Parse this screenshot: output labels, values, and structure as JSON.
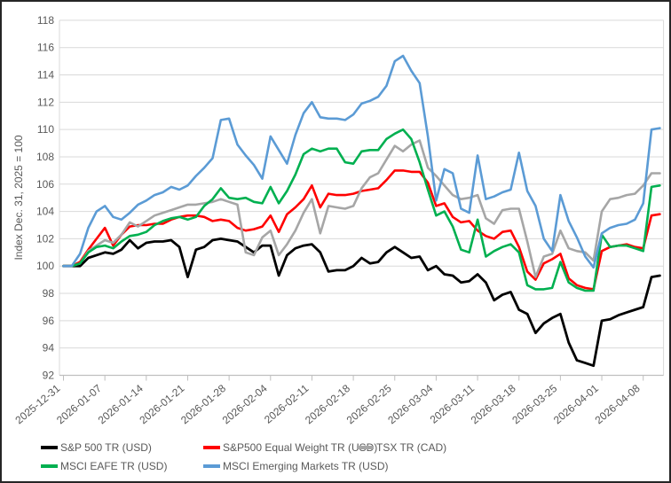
{
  "y_axis": {
    "title": "Index Dec. 31, 2025 = 100",
    "min": 92,
    "max": 118,
    "step": 2,
    "tick_labels": [
      "92",
      "94",
      "96",
      "98",
      "100",
      "102",
      "104",
      "106",
      "108",
      "110",
      "112",
      "114",
      "116",
      "118"
    ]
  },
  "x_axis": {
    "tick_labels": [
      "2025-12-31",
      "2026-01-07",
      "2026-01-14",
      "2026-01-21",
      "2026-01-28",
      "2026-02-04",
      "2026-02-11",
      "2026-02-18",
      "2026-02-25",
      "2026-03-04",
      "2026-03-11",
      "2026-03-18",
      "2026-03-25",
      "2026-04-01",
      "2026-04-08"
    ],
    "tick_every": 5
  },
  "colors": {
    "gridline": "#d9d9d9",
    "axis_line": "#bfbfbf",
    "text": "#595959",
    "figure_border": "#262626"
  },
  "chart_data": {
    "type": "line",
    "title": "",
    "xlabel": "",
    "ylabel": "Index Dec. 31, 2025 = 100",
    "ylim": [
      92,
      118
    ],
    "grid": true,
    "legend_position": "bottom",
    "x": [
      "2025-12-31",
      "2026-01-01",
      "2026-01-02",
      "2026-01-05",
      "2026-01-06",
      "2026-01-07",
      "2026-01-08",
      "2026-01-09",
      "2026-01-12",
      "2026-01-13",
      "2026-01-14",
      "2026-01-15",
      "2026-01-16",
      "2026-01-19",
      "2026-01-20",
      "2026-01-21",
      "2026-01-22",
      "2026-01-23",
      "2026-01-26",
      "2026-01-27",
      "2026-01-28",
      "2026-01-29",
      "2026-01-30",
      "2026-02-02",
      "2026-02-03",
      "2026-02-04",
      "2026-02-05",
      "2026-02-06",
      "2026-02-09",
      "2026-02-10",
      "2026-02-11",
      "2026-02-12",
      "2026-02-13",
      "2026-02-16",
      "2026-02-17",
      "2026-02-18",
      "2026-02-19",
      "2026-02-20",
      "2026-02-23",
      "2026-02-24",
      "2026-02-25",
      "2026-02-26",
      "2026-02-27",
      "2026-03-02",
      "2026-03-03",
      "2026-03-04",
      "2026-03-05",
      "2026-03-06",
      "2026-03-09",
      "2026-03-10",
      "2026-03-11",
      "2026-03-12",
      "2026-03-13",
      "2026-03-16",
      "2026-03-17",
      "2026-03-18",
      "2026-03-19",
      "2026-03-20",
      "2026-03-23",
      "2026-03-24",
      "2026-03-25",
      "2026-03-26",
      "2026-03-27",
      "2026-03-30",
      "2026-03-31",
      "2026-04-01",
      "2026-04-02",
      "2026-04-03",
      "2026-04-06",
      "2026-04-07",
      "2026-04-08",
      "2026-04-09",
      "2026-04-10"
    ],
    "series": [
      {
        "name": "S&P 500 TR (USD)",
        "color": "#000000",
        "values": [
          100,
          100,
          100.0,
          100.6,
          100.8,
          101.0,
          100.9,
          101.2,
          101.9,
          101.3,
          101.7,
          101.8,
          101.8,
          101.9,
          101.4,
          99.2,
          101.2,
          101.4,
          101.9,
          102.0,
          101.9,
          101.8,
          101.4,
          101.0,
          101.5,
          101.5,
          99.3,
          100.8,
          101.3,
          101.5,
          101.6,
          101.0,
          99.6,
          99.7,
          99.7,
          100.0,
          100.6,
          100.2,
          100.3,
          101.0,
          101.4,
          101.0,
          100.6,
          100.7,
          99.7,
          100.0,
          99.4,
          99.3,
          98.8,
          98.9,
          99.4,
          98.8,
          97.5,
          97.9,
          98.1,
          96.8,
          96.5,
          95.1,
          95.8,
          96.2,
          96.5,
          94.4,
          93.1,
          92.9,
          92.7,
          96.0,
          96.1,
          96.4,
          96.6,
          96.8,
          97.0,
          99.2,
          99.3
        ]
      },
      {
        "name": "S&P500 Equal Weight TR (USD)",
        "color": "#ff0000",
        "values": [
          100,
          100,
          100.3,
          101.2,
          102.0,
          102.8,
          101.5,
          102.3,
          102.9,
          103.0,
          103.0,
          103.1,
          103.1,
          103.4,
          103.6,
          103.7,
          103.7,
          103.6,
          103.3,
          103.4,
          103.3,
          102.8,
          102.6,
          102.7,
          102.9,
          103.7,
          102.5,
          103.8,
          104.3,
          104.9,
          105.9,
          104.3,
          105.3,
          105.2,
          105.2,
          105.3,
          105.5,
          105.6,
          105.7,
          106.3,
          107.0,
          107.0,
          106.9,
          106.9,
          106.1,
          104.4,
          104.6,
          103.6,
          103.2,
          103.3,
          102.6,
          102.2,
          102.0,
          102.5,
          102.6,
          101.4,
          99.6,
          99.0,
          100.2,
          100.5,
          100.9,
          99.1,
          98.6,
          98.4,
          98.3,
          101.1,
          101.4,
          101.5,
          101.6,
          101.4,
          101.3,
          103.7,
          103.8
        ]
      },
      {
        "name": "TSX TR (CAD)",
        "color": "#a6a6a6",
        "values": [
          100,
          100,
          100.2,
          101.1,
          101.5,
          101.9,
          101.7,
          102.3,
          103.2,
          102.9,
          103.3,
          103.7,
          103.9,
          104.1,
          104.3,
          104.5,
          104.5,
          104.6,
          104.7,
          104.9,
          104.7,
          104.5,
          101.0,
          100.8,
          102.1,
          102.6,
          100.8,
          101.6,
          102.6,
          103.9,
          104.9,
          102.4,
          104.4,
          104.3,
          104.2,
          104.4,
          105.7,
          106.5,
          106.8,
          107.8,
          108.8,
          108.4,
          108.9,
          109.2,
          107.2,
          106.6,
          105.9,
          105.2,
          104.9,
          105.0,
          105.2,
          103.5,
          103.1,
          104.1,
          104.2,
          104.2,
          101.8,
          99.2,
          100.7,
          100.9,
          102.6,
          101.3,
          101.1,
          101.0,
          100.4,
          104.0,
          104.9,
          105.0,
          105.2,
          105.3,
          105.9,
          106.8,
          106.8
        ]
      },
      {
        "name": "MSCI EAFE TR (USD)",
        "color": "#00b050",
        "values": [
          100,
          100,
          100.2,
          101.0,
          101.4,
          101.5,
          101.3,
          101.8,
          102.2,
          102.3,
          102.5,
          103.0,
          103.3,
          103.5,
          103.6,
          103.4,
          103.6,
          104.4,
          104.9,
          105.7,
          105.0,
          104.9,
          105.0,
          104.7,
          104.6,
          105.8,
          104.6,
          105.5,
          106.7,
          108.2,
          108.6,
          108.4,
          108.6,
          108.6,
          107.6,
          107.5,
          108.4,
          108.5,
          108.5,
          109.3,
          109.7,
          110.0,
          109.3,
          107.6,
          105.6,
          103.7,
          104.0,
          102.9,
          101.2,
          101.0,
          103.4,
          100.7,
          101.1,
          101.4,
          101.6,
          101.0,
          98.6,
          98.3,
          98.3,
          98.4,
          100.3,
          98.8,
          98.4,
          98.2,
          98.2,
          102.3,
          101.4,
          101.5,
          101.5,
          101.3,
          101.1,
          105.8,
          105.9
        ]
      },
      {
        "name": "MSCI Emerging Markets TR (USD)",
        "color": "#5b9bd5",
        "values": [
          100,
          100,
          100.9,
          102.8,
          104.0,
          104.4,
          103.6,
          103.4,
          103.9,
          104.5,
          104.8,
          105.2,
          105.4,
          105.8,
          105.6,
          105.9,
          106.6,
          107.2,
          107.9,
          110.7,
          110.8,
          108.9,
          108.1,
          107.4,
          106.4,
          109.5,
          108.5,
          107.5,
          109.6,
          111.2,
          112.0,
          110.9,
          110.8,
          110.8,
          110.7,
          111.1,
          111.9,
          112.1,
          112.4,
          113.2,
          115.0,
          115.4,
          114.3,
          113.4,
          109.5,
          104.8,
          107.1,
          106.8,
          104.2,
          103.9,
          108.1,
          104.9,
          105.1,
          105.4,
          105.6,
          108.3,
          105.5,
          104.4,
          102.0,
          101.1,
          105.2,
          103.3,
          102.1,
          100.7,
          99.9,
          102.4,
          102.8,
          103.0,
          103.1,
          103.4,
          104.6,
          110.0,
          110.1
        ]
      }
    ]
  }
}
